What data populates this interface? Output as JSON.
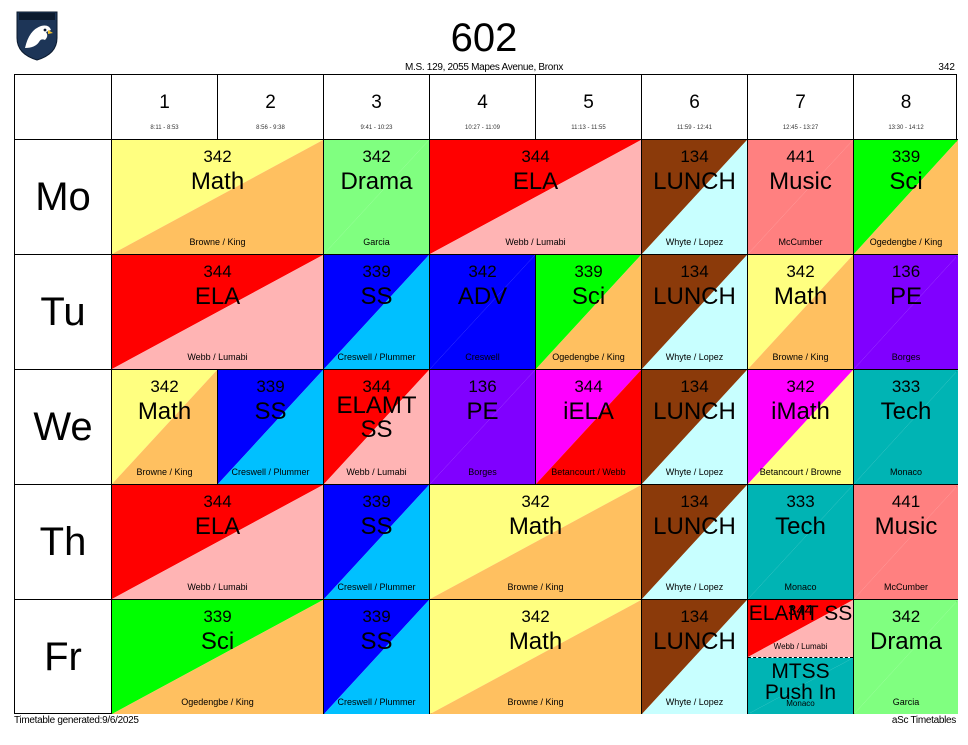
{
  "header": {
    "title": "602",
    "school": "M.S. 129, 2055 Mapes Avenue, Bronx",
    "room": "342"
  },
  "footer": {
    "generated": "Timetable generated:9/6/2025",
    "brand": "aSc Timetables"
  },
  "periods": [
    {
      "num": "1",
      "time": "8:11 - 8:53"
    },
    {
      "num": "2",
      "time": "8:56 - 9:38"
    },
    {
      "num": "3",
      "time": "9:41 - 10:23"
    },
    {
      "num": "4",
      "time": "10:27 - 11:09"
    },
    {
      "num": "5",
      "time": "11:13 - 11:55"
    },
    {
      "num": "6",
      "time": "11:59 - 12:41"
    },
    {
      "num": "7",
      "time": "12:45 - 13:27"
    },
    {
      "num": "8",
      "time": "13:30 - 14:12"
    }
  ],
  "days": [
    "Mo",
    "Tu",
    "We",
    "Th",
    "Fr"
  ],
  "colors": {
    "yellow": "#ffff80",
    "orange": "#ffc060",
    "green": "#80ff80",
    "red": "#ff0000",
    "pink": "#ffb4b4",
    "brown": "#8b3a0a",
    "lightcyan": "#c8ffff",
    "salmon": "#ff8080",
    "brightgreen": "#00ff00",
    "blue": "#0000ff",
    "sky": "#00c0ff",
    "purple": "#8000ff",
    "magenta": "#ff00ff",
    "teal": "#00b4b4"
  },
  "lessons": [
    {
      "day": 0,
      "start": 0,
      "span": 2,
      "room": "342",
      "subject": "Math",
      "teacher": "Browne / King",
      "c1": "yellow",
      "c2": "orange"
    },
    {
      "day": 0,
      "start": 2,
      "span": 1,
      "room": "342",
      "subject": "Drama",
      "teacher": "Garcia",
      "c1": "green",
      "c2": "green"
    },
    {
      "day": 0,
      "start": 3,
      "span": 2,
      "room": "344",
      "subject": "ELA",
      "teacher": "Webb / Lumabi",
      "c1": "red",
      "c2": "pink"
    },
    {
      "day": 0,
      "start": 5,
      "span": 1,
      "room": "134",
      "subject": "LUNCH",
      "teacher": "Whyte / Lopez",
      "c1": "brown",
      "c2": "lightcyan"
    },
    {
      "day": 0,
      "start": 6,
      "span": 1,
      "room": "441",
      "subject": "Music",
      "teacher": "McCumber",
      "c1": "salmon",
      "c2": "salmon"
    },
    {
      "day": 0,
      "start": 7,
      "span": 1,
      "room": "339",
      "subject": "Sci",
      "teacher": "Ogedengbe / King",
      "c1": "brightgreen",
      "c2": "orange"
    },
    {
      "day": 1,
      "start": 0,
      "span": 2,
      "room": "344",
      "subject": "ELA",
      "teacher": "Webb / Lumabi",
      "c1": "red",
      "c2": "pink"
    },
    {
      "day": 1,
      "start": 2,
      "span": 1,
      "room": "339",
      "subject": "SS",
      "teacher": "Creswell / Plummer",
      "c1": "blue",
      "c2": "sky"
    },
    {
      "day": 1,
      "start": 3,
      "span": 1,
      "room": "342",
      "subject": "ADV",
      "teacher": "Creswell",
      "c1": "blue",
      "c2": "blue"
    },
    {
      "day": 1,
      "start": 4,
      "span": 1,
      "room": "339",
      "subject": "Sci",
      "teacher": "Ogedengbe / King",
      "c1": "brightgreen",
      "c2": "orange"
    },
    {
      "day": 1,
      "start": 5,
      "span": 1,
      "room": "134",
      "subject": "LUNCH",
      "teacher": "Whyte / Lopez",
      "c1": "brown",
      "c2": "lightcyan"
    },
    {
      "day": 1,
      "start": 6,
      "span": 1,
      "room": "342",
      "subject": "Math",
      "teacher": "Browne / King",
      "c1": "yellow",
      "c2": "orange"
    },
    {
      "day": 1,
      "start": 7,
      "span": 1,
      "room": "136",
      "subject": "PE",
      "teacher": "Borges",
      "c1": "purple",
      "c2": "purple"
    },
    {
      "day": 2,
      "start": 0,
      "span": 1,
      "room": "342",
      "subject": "Math",
      "teacher": "Browne / King",
      "c1": "yellow",
      "c2": "orange"
    },
    {
      "day": 2,
      "start": 1,
      "span": 1,
      "room": "339",
      "subject": "SS",
      "teacher": "Creswell / Plummer",
      "c1": "blue",
      "c2": "sky"
    },
    {
      "day": 2,
      "start": 2,
      "span": 1,
      "room": "344",
      "subject": "ELAMT SS",
      "teacher": "Webb / Lumabi",
      "c1": "red",
      "c2": "pink"
    },
    {
      "day": 2,
      "start": 3,
      "span": 1,
      "room": "136",
      "subject": "PE",
      "teacher": "Borges",
      "c1": "purple",
      "c2": "purple"
    },
    {
      "day": 2,
      "start": 4,
      "span": 1,
      "room": "344",
      "subject": "iELA",
      "teacher": "Betancourt / Webb",
      "c1": "magenta",
      "c2": "red"
    },
    {
      "day": 2,
      "start": 5,
      "span": 1,
      "room": "134",
      "subject": "LUNCH",
      "teacher": "Whyte / Lopez",
      "c1": "brown",
      "c2": "lightcyan"
    },
    {
      "day": 2,
      "start": 6,
      "span": 1,
      "room": "342",
      "subject": "iMath",
      "teacher": "Betancourt / Browne",
      "c1": "magenta",
      "c2": "yellow"
    },
    {
      "day": 2,
      "start": 7,
      "span": 1,
      "room": "333",
      "subject": "Tech",
      "teacher": "Monaco",
      "c1": "teal",
      "c2": "teal"
    },
    {
      "day": 3,
      "start": 0,
      "span": 2,
      "room": "344",
      "subject": "ELA",
      "teacher": "Webb / Lumabi",
      "c1": "red",
      "c2": "pink"
    },
    {
      "day": 3,
      "start": 2,
      "span": 1,
      "room": "339",
      "subject": "SS",
      "teacher": "Creswell / Plummer",
      "c1": "blue",
      "c2": "sky"
    },
    {
      "day": 3,
      "start": 3,
      "span": 2,
      "room": "342",
      "subject": "Math",
      "teacher": "Browne / King",
      "c1": "yellow",
      "c2": "orange"
    },
    {
      "day": 3,
      "start": 5,
      "span": 1,
      "room": "134",
      "subject": "LUNCH",
      "teacher": "Whyte / Lopez",
      "c1": "brown",
      "c2": "lightcyan"
    },
    {
      "day": 3,
      "start": 6,
      "span": 1,
      "room": "333",
      "subject": "Tech",
      "teacher": "Monaco",
      "c1": "teal",
      "c2": "teal"
    },
    {
      "day": 3,
      "start": 7,
      "span": 1,
      "room": "441",
      "subject": "Music",
      "teacher": "McCumber",
      "c1": "salmon",
      "c2": "salmon"
    },
    {
      "day": 4,
      "start": 0,
      "span": 2,
      "room": "339",
      "subject": "Sci",
      "teacher": "Ogedengbe / King",
      "c1": "brightgreen",
      "c2": "orange"
    },
    {
      "day": 4,
      "start": 2,
      "span": 1,
      "room": "339",
      "subject": "SS",
      "teacher": "Creswell / Plummer",
      "c1": "blue",
      "c2": "sky"
    },
    {
      "day": 4,
      "start": 3,
      "span": 2,
      "room": "342",
      "subject": "Math",
      "teacher": "Browne / King",
      "c1": "yellow",
      "c2": "orange"
    },
    {
      "day": 4,
      "start": 5,
      "span": 1,
      "room": "134",
      "subject": "LUNCH",
      "teacher": "Whyte / Lopez",
      "c1": "brown",
      "c2": "lightcyan"
    },
    {
      "day": 4,
      "start": 6,
      "span": 1,
      "split": true,
      "top": {
        "room": "344",
        "subject": "ELAMT SS",
        "teacher": "Webb / Lumabi",
        "c1": "red",
        "c2": "pink"
      },
      "bottom": {
        "room": "",
        "subject": "MTSS Push In",
        "teacher": "Monaco",
        "c1": "teal",
        "c2": "teal"
      }
    },
    {
      "day": 4,
      "start": 7,
      "span": 1,
      "room": "342",
      "subject": "Drama",
      "teacher": "Garcia",
      "c1": "green",
      "c2": "green"
    }
  ]
}
